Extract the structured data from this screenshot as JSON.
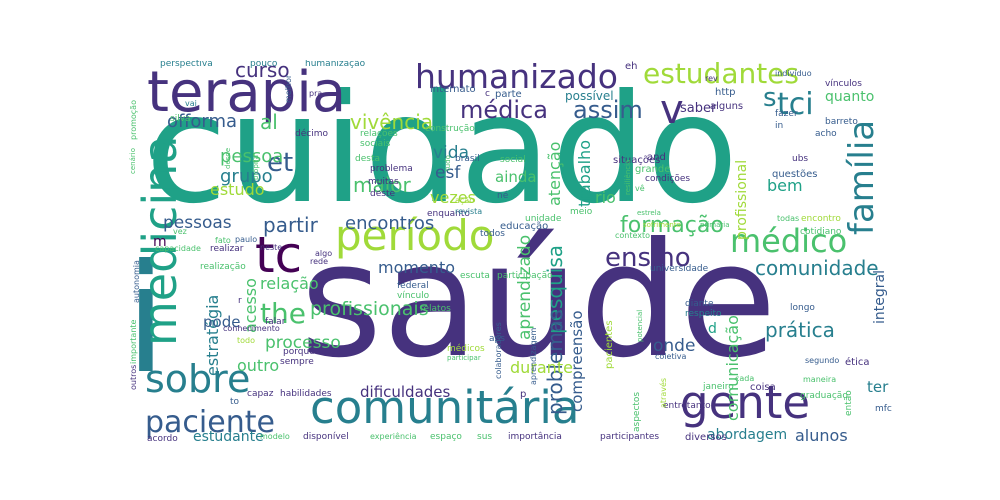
{
  "palette": {
    "viridis_dark": "#440154",
    "indigo": "#46327e",
    "blue": "#365c8d",
    "teal": "#277f8e",
    "green_teal": "#1fa187",
    "green": "#4ac16d",
    "lime": "#a0da39",
    "yellow": "#fde725"
  },
  "words": [
    {
      "text": "cuidado",
      "color": "#1fa187"
    },
    {
      "text": "saúde",
      "color": "#46327e"
    },
    {
      "text": "i",
      "color": "#277f8e"
    },
    {
      "text": "comunitária",
      "color": "#277f8e"
    },
    {
      "text": "gente",
      "color": "#46327e"
    },
    {
      "text": "período",
      "color": "#a0da39"
    },
    {
      "text": "terapia",
      "color": "#46327e"
    },
    {
      "text": "medicina",
      "color": "#1fa187"
    },
    {
      "text": "tc",
      "color": "#440154"
    },
    {
      "text": "sobre",
      "color": "#277f8e"
    },
    {
      "text": "família",
      "color": "#277f8e"
    },
    {
      "text": "médico",
      "color": "#4ac16d"
    },
    {
      "text": "humanizado",
      "color": "#46327e"
    },
    {
      "text": "estudantes",
      "color": "#a0da39"
    },
    {
      "text": "médica",
      "color": "#46327e"
    },
    {
      "text": "v",
      "color": "#46327e"
    },
    {
      "text": "s",
      "color": "#277f8e"
    },
    {
      "text": "tci",
      "color": "#277f8e"
    },
    {
      "text": "assim",
      "color": "#365c8d"
    },
    {
      "text": "paciente",
      "color": "#365c8d"
    },
    {
      "text": "ensino",
      "color": "#46327e"
    },
    {
      "text": "the",
      "color": "#4ac16d"
    },
    {
      "text": "formação",
      "color": "#4ac16d"
    },
    {
      "text": "comunidade",
      "color": "#277f8e"
    },
    {
      "text": "prática",
      "color": "#277f8e"
    },
    {
      "text": "profissionais",
      "color": "#4ac16d"
    },
    {
      "text": "et",
      "color": "#365c8d"
    },
    {
      "text": "curso",
      "color": "#46327e"
    },
    {
      "text": "quanto",
      "color": "#4ac16d"
    },
    {
      "text": "offorma",
      "color": "#365c8d"
    },
    {
      "text": "al",
      "color": "#4ac16d"
    },
    {
      "text": "vivência",
      "color": "#a0da39"
    },
    {
      "text": "pessoa",
      "color": "#4ac16d"
    },
    {
      "text": "grupo",
      "color": "#277f8e"
    },
    {
      "text": "maior",
      "color": "#4ac16d"
    },
    {
      "text": "estudo",
      "color": "#a0da39"
    },
    {
      "text": "pessoas",
      "color": "#365c8d"
    },
    {
      "text": "partir",
      "color": "#365c8d"
    },
    {
      "text": "encontros",
      "color": "#365c8d"
    },
    {
      "text": "vida",
      "color": "#277f8e"
    },
    {
      "text": "esf",
      "color": "#365c8d"
    },
    {
      "text": "ainda",
      "color": "#4ac16d"
    },
    {
      "text": "vezes",
      "color": "#a0da39"
    },
    {
      "text": "relação",
      "color": "#4ac16d"
    },
    {
      "text": "momento",
      "color": "#365c8d"
    },
    {
      "text": "pesquisa",
      "color": "#1fa187"
    },
    {
      "text": "trabalho",
      "color": "#1fa187"
    },
    {
      "text": "atenção",
      "color": "#4ac16d"
    },
    {
      "text": "rio",
      "color": "#4ac16d"
    },
    {
      "text": "profissional",
      "color": "#a0da39"
    },
    {
      "text": "bem",
      "color": "#1fa187"
    },
    {
      "text": "problemas",
      "color": "#365c8d"
    },
    {
      "text": "aprendizado",
      "color": "#4ac16d"
    },
    {
      "text": "compreensão",
      "color": "#365c8d"
    },
    {
      "text": "processo",
      "color": "#4ac16d"
    },
    {
      "text": "outro",
      "color": "#4ac16d"
    },
    {
      "text": "estratégia",
      "color": "#277f8e"
    },
    {
      "text": "acesso",
      "color": "#4ac16d"
    },
    {
      "text": "pode",
      "color": "#365c8d"
    },
    {
      "text": "onde",
      "color": "#365c8d"
    },
    {
      "text": "durante",
      "color": "#a0da39"
    },
    {
      "text": "dificuldades",
      "color": "#46327e"
    },
    {
      "text": "comunicação",
      "color": "#4ac16d"
    },
    {
      "text": "alunos",
      "color": "#365c8d"
    },
    {
      "text": "abordagem",
      "color": "#277f8e"
    },
    {
      "text": "estudante",
      "color": "#277f8e"
    },
    {
      "text": "ter",
      "color": "#277f8e"
    },
    {
      "text": "integral",
      "color": "#365c8d"
    },
    {
      "text": "d",
      "color": "#1fa187"
    },
    {
      "text": "m",
      "color": "#440154"
    },
    {
      "text": "saber",
      "color": "#46327e"
    },
    {
      "text": "possível",
      "color": "#277f8e"
    },
    {
      "text": "internato",
      "color": "#365c8d"
    },
    {
      "text": "parte",
      "color": "#365c8d"
    },
    {
      "text": "eh",
      "color": "#46327e"
    },
    {
      "text": "http",
      "color": "#365c8d"
    },
    {
      "text": "alguns",
      "color": "#46327e"
    },
    {
      "text": "rev",
      "color": "#46327e"
    },
    {
      "text": "indivíduo",
      "color": "#365c8d"
    },
    {
      "text": "vínculos",
      "color": "#46327e"
    },
    {
      "text": "barreto",
      "color": "#365c8d"
    },
    {
      "text": "fazer",
      "color": "#365c8d"
    },
    {
      "text": "in",
      "color": "#365c8d"
    },
    {
      "text": "acho",
      "color": "#365c8d"
    },
    {
      "text": "perspectiva",
      "color": "#277f8e"
    },
    {
      "text": "pouco",
      "color": "#277f8e"
    },
    {
      "text": "humanização",
      "color": "#277f8e"
    },
    {
      "text": "melhor",
      "color": "#365c8d"
    },
    {
      "text": "pra",
      "color": "#46327e"
    },
    {
      "text": "vai",
      "color": "#277f8e"
    },
    {
      "text": "silva",
      "color": "#4ac16d"
    },
    {
      "text": "décimo",
      "color": "#46327e"
    },
    {
      "text": "relações",
      "color": "#4ac16d"
    },
    {
      "text": "sociais",
      "color": "#4ac16d"
    },
    {
      "text": "desta",
      "color": "#4ac16d"
    },
    {
      "text": "construção",
      "color": "#4ac16d"
    },
    {
      "text": "brasil",
      "color": "#365c8d"
    },
    {
      "text": "social",
      "color": "#4ac16d"
    },
    {
      "text": "situações",
      "color": "#46327e"
    },
    {
      "text": "problema",
      "color": "#46327e"
    },
    {
      "text": "muitas",
      "color": "#46327e"
    },
    {
      "text": "deste",
      "color": "#46327e"
    },
    {
      "text": "enquanto",
      "color": "#46327e"
    },
    {
      "text": "né",
      "color": "#365c8d"
    },
    {
      "text": "and",
      "color": "#46327e"
    },
    {
      "text": "grande",
      "color": "#4ac16d"
    },
    {
      "text": "condições",
      "color": "#46327e"
    },
    {
      "text": "ubs",
      "color": "#46327e"
    },
    {
      "text": "questões",
      "color": "#365c8d"
    },
    {
      "text": "revista",
      "color": "#277f8e"
    },
    {
      "text": "unidade",
      "color": "#4ac16d"
    },
    {
      "text": "meio",
      "color": "#4ac16d"
    },
    {
      "text": "educação",
      "color": "#365c8d"
    },
    {
      "text": "todos",
      "color": "#365c8d"
    },
    {
      "text": "contexto",
      "color": "#4ac16d"
    },
    {
      "text": "todas",
      "color": "#4ac16d"
    },
    {
      "text": "encontro",
      "color": "#a0da39"
    },
    {
      "text": "cotidiano",
      "color": "#4ac16d"
    },
    {
      "text": "paulo",
      "color": "#365c8d"
    },
    {
      "text": "neste",
      "color": "#46327e"
    },
    {
      "text": "algo",
      "color": "#46327e"
    },
    {
      "text": "rede",
      "color": "#46327e"
    },
    {
      "text": "capacidade",
      "color": "#4ac16d"
    },
    {
      "text": "realizar",
      "color": "#46327e"
    },
    {
      "text": "fato",
      "color": "#4ac16d"
    },
    {
      "text": "vez",
      "color": "#4ac16d"
    },
    {
      "text": "autonomia",
      "color": "#365c8d"
    },
    {
      "text": "realização",
      "color": "#4ac16d"
    },
    {
      "text": "escuta",
      "color": "#4ac16d"
    },
    {
      "text": "participação",
      "color": "#4ac16d"
    },
    {
      "text": "universidade",
      "color": "#365c8d"
    },
    {
      "text": "federal",
      "color": "#365c8d"
    },
    {
      "text": "vínculo",
      "color": "#4ac16d"
    },
    {
      "text": "relatos",
      "color": "#4ac16d"
    },
    {
      "text": "aprendizagem",
      "color": "#365c8d"
    },
    {
      "text": "aps",
      "color": "#365c8d"
    },
    {
      "text": "médicos",
      "color": "#a0da39"
    },
    {
      "text": "participar",
      "color": "#4ac16d"
    },
    {
      "text": "colaboradores",
      "color": "#365c8d"
    },
    {
      "text": "pacientes",
      "color": "#a0da39"
    },
    {
      "text": "diante",
      "color": "#365c8d"
    },
    {
      "text": "respeito",
      "color": "#277f8e"
    },
    {
      "text": "longo",
      "color": "#365c8d"
    },
    {
      "text": "coletiva",
      "color": "#365c8d"
    },
    {
      "text": "segundo",
      "color": "#365c8d"
    },
    {
      "text": "maneira",
      "color": "#4ac16d"
    },
    {
      "text": "ética",
      "color": "#46327e"
    },
    {
      "text": "coisa",
      "color": "#46327e"
    },
    {
      "text": "mfc",
      "color": "#365c8d"
    },
    {
      "text": "então",
      "color": "#4ac16d"
    },
    {
      "text": "graduação",
      "color": "#4ac16d"
    },
    {
      "text": "cada",
      "color": "#4ac16d"
    },
    {
      "text": "janeiro",
      "color": "#4ac16d"
    },
    {
      "text": "entretanto",
      "color": "#46327e"
    },
    {
      "text": "aspectos",
      "color": "#4ac16d"
    },
    {
      "text": "através",
      "color": "#a0da39"
    },
    {
      "text": "diversos",
      "color": "#46327e"
    },
    {
      "text": "participantes",
      "color": "#46327e"
    },
    {
      "text": "importância",
      "color": "#46327e"
    },
    {
      "text": "espaço",
      "color": "#4ac16d"
    },
    {
      "text": "sus",
      "color": "#4ac16d"
    },
    {
      "text": "experiência",
      "color": "#4ac16d"
    },
    {
      "text": "disponível",
      "color": "#46327e"
    },
    {
      "text": "modelo",
      "color": "#4ac16d"
    },
    {
      "text": "acordo",
      "color": "#46327e"
    },
    {
      "text": "habilidades",
      "color": "#46327e"
    },
    {
      "text": "capaz",
      "color": "#46327e"
    },
    {
      "text": "to",
      "color": "#365c8d"
    },
    {
      "text": "sempre",
      "color": "#46327e"
    },
    {
      "text": "porque",
      "color": "#46327e"
    },
    {
      "text": "sendo",
      "color": "#46327e"
    },
    {
      "text": "mar",
      "color": "#46327e"
    },
    {
      "text": "conhecimento",
      "color": "#46327e"
    },
    {
      "text": "falar",
      "color": "#46327e"
    },
    {
      "text": "todo",
      "color": "#a0da39"
    },
    {
      "text": "outros",
      "color": "#46327e"
    },
    {
      "text": "importante",
      "color": "#4ac16d"
    },
    {
      "text": "r",
      "color": "#46327e"
    },
    {
      "text": "c",
      "color": "#46327e"
    },
    {
      "text": "p",
      "color": "#46327e"
    },
    {
      "text": "promoção",
      "color": "#4ac16d"
    },
    {
      "text": "cenário",
      "color": "#4ac16d"
    },
    {
      "text": "resiliência",
      "color": "#4ac16d"
    },
    {
      "text": "tudo",
      "color": "#4ac16d"
    },
    {
      "text": "ação",
      "color": "#a0da39"
    },
    {
      "text": "vê",
      "color": "#4ac16d"
    },
    {
      "text": "desde",
      "color": "#4ac16d"
    },
    {
      "text": "própria",
      "color": "#4ac16d"
    },
    {
      "text": "estrela",
      "color": "#4ac16d"
    },
    {
      "text": "primária",
      "color": "#4ac16d"
    },
    {
      "text": "sofrimento",
      "color": "#a0da39"
    },
    {
      "text": "potencial",
      "color": "#4ac16d"
    }
  ]
}
